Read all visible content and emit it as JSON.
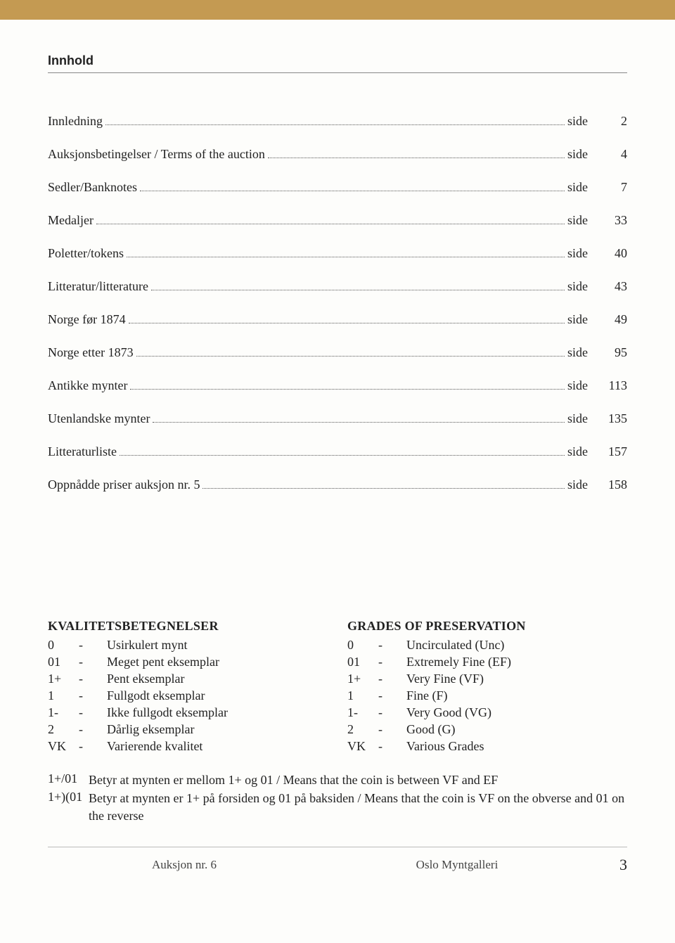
{
  "colors": {
    "top_bar": "#c49a52",
    "background": "#fdfdfb",
    "heading_border": "#888888",
    "text": "#222222",
    "footer_rule": "#bbbbbb"
  },
  "typography": {
    "body_font": "Georgia, 'Times New Roman', serif",
    "heading_font": "Arial, Helvetica, sans-serif",
    "body_size_pt": 14,
    "heading_size_pt": 14,
    "page_number_size_pt": 17
  },
  "heading": "Innhold",
  "toc": {
    "side_label": "side",
    "items": [
      {
        "label": "Innledning",
        "page": "2"
      },
      {
        "label": "Auksjonsbetingelser / Terms of the auction",
        "page": "4"
      },
      {
        "label": "Sedler/Banknotes",
        "page": "7"
      },
      {
        "label": "Medaljer",
        "page": "33"
      },
      {
        "label": "Poletter/tokens",
        "page": "40"
      },
      {
        "label": "Litteratur/litterature",
        "page": "43"
      },
      {
        "label": "Norge før 1874",
        "page": "49"
      },
      {
        "label": "Norge etter 1873",
        "page": "95"
      },
      {
        "label": "Antikke mynter",
        "page": "113"
      },
      {
        "label": "Utenlandske mynter",
        "page": "135"
      },
      {
        "label": "Litteraturliste",
        "page": "157"
      },
      {
        "label": "Oppnådde priser auksjon nr. 5",
        "page": "158"
      }
    ]
  },
  "grades_left": {
    "heading": "KVALITETSBETEGNELSER",
    "rows": [
      {
        "code": "0",
        "dash": "-",
        "desc": "Usirkulert mynt"
      },
      {
        "code": "01",
        "dash": "-",
        "desc": "Meget pent eksemplar"
      },
      {
        "code": "1+",
        "dash": "-",
        "desc": "Pent eksemplar"
      },
      {
        "code": "1",
        "dash": "-",
        "desc": "Fullgodt eksemplar"
      },
      {
        "code": "1-",
        "dash": "-",
        "desc": "Ikke fullgodt eksemplar"
      },
      {
        "code": "2",
        "dash": "-",
        "desc": "Dårlig eksemplar"
      },
      {
        "code": "VK",
        "dash": "-",
        "desc": "Varierende kvalitet"
      }
    ]
  },
  "grades_right": {
    "heading": "GRADES OF PRESERVATION",
    "rows": [
      {
        "code": "0",
        "dash": "-",
        "desc": "Uncirculated (Unc)"
      },
      {
        "code": "01",
        "dash": "-",
        "desc": "Extremely Fine (EF)"
      },
      {
        "code": "1+",
        "dash": "-",
        "desc": "Very Fine (VF)"
      },
      {
        "code": "1",
        "dash": "-",
        "desc": "Fine (F)"
      },
      {
        "code": "1-",
        "dash": "-",
        "desc": "Very Good (VG)"
      },
      {
        "code": "2",
        "dash": "-",
        "desc": "Good (G)"
      },
      {
        "code": "VK",
        "dash": "-",
        "desc": "Various Grades"
      }
    ]
  },
  "notes": [
    {
      "key": "1+/01",
      "text": "Betyr at mynten er mellom 1+ og 01 / Means that the coin is between VF and EF"
    },
    {
      "key": "1+)(01",
      "text": "Betyr at mynten er 1+ på forsiden og 01 på baksiden / Means that the coin is VF on the obverse and 01 on the reverse"
    }
  ],
  "footer": {
    "left": "Auksjon nr. 6",
    "right": "Oslo Myntgalleri",
    "page": "3"
  }
}
